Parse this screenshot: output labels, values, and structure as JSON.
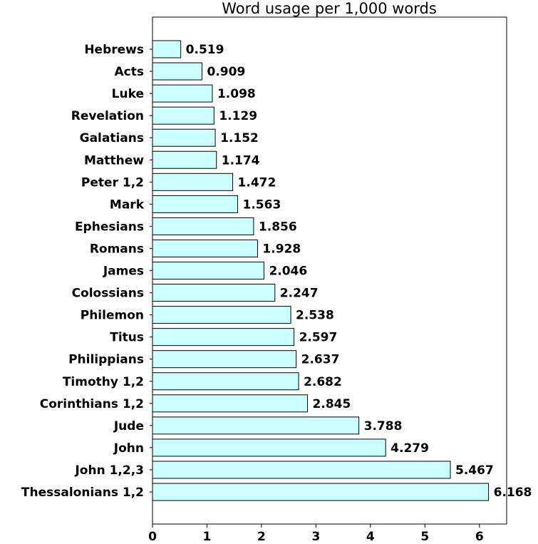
{
  "chart_data": {
    "type": "bar",
    "orientation": "horizontal",
    "title": "Word usage per 1,000 words",
    "xlabel": "",
    "ylabel": "",
    "categories": [
      "Hebrews",
      "Acts",
      "Luke",
      "Revelation",
      "Galatians",
      "Matthew",
      "Peter 1,2",
      "Mark",
      "Ephesians",
      "Romans",
      "James",
      "Colossians",
      "Philemon",
      "Titus",
      "Philippians",
      "Timothy 1,2",
      "Corinthians 1,2",
      "Jude",
      "John",
      "John 1,2,3",
      "Thessalonians 1,2"
    ],
    "values": [
      0.519,
      0.909,
      1.098,
      1.129,
      1.152,
      1.174,
      1.472,
      1.563,
      1.856,
      1.928,
      2.046,
      2.247,
      2.538,
      2.597,
      2.637,
      2.682,
      2.845,
      3.788,
      4.279,
      5.467,
      6.168
    ],
    "value_labels": [
      "0.519",
      "0.909",
      "1.098",
      "1.129",
      "1.152",
      "1.174",
      "1.472",
      "1.563",
      "1.856",
      "1.928",
      "2.046",
      "2.247",
      "2.538",
      "2.597",
      "2.637",
      "2.682",
      "2.845",
      "3.788",
      "4.279",
      "5.467",
      "6.168"
    ],
    "xlim": [
      0,
      6.5
    ],
    "xticks": [
      "0",
      "1",
      "2",
      "3",
      "4",
      "5",
      "6"
    ],
    "grid": false,
    "legend": "none",
    "colors": {
      "bar_fill": "#ccffff",
      "bar_stroke": "#000000"
    }
  }
}
